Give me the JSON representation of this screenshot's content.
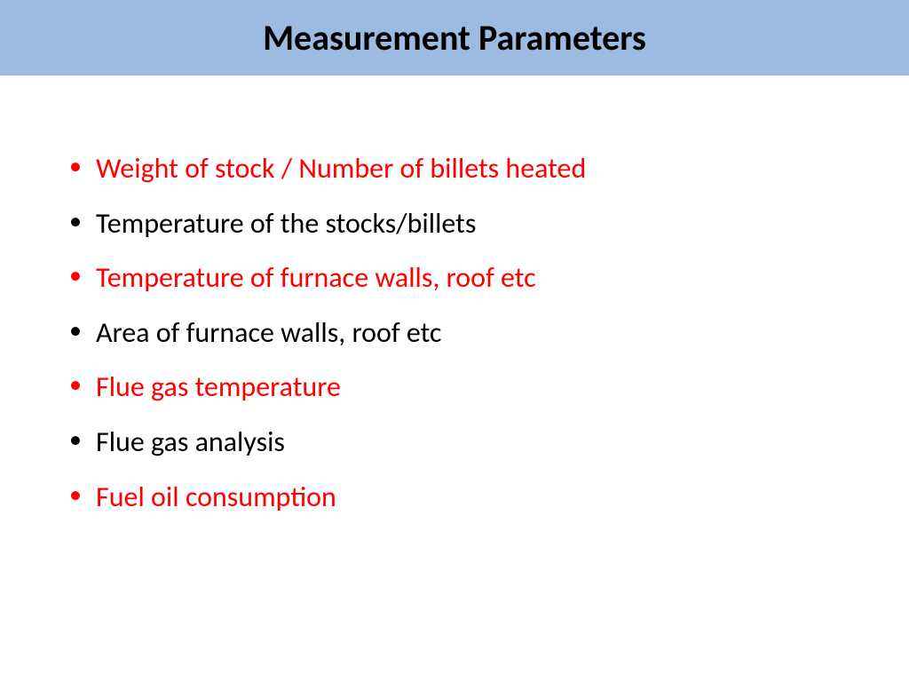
{
  "header": {
    "title": "Measurement Parameters",
    "background_color": "#9bbce0",
    "title_color": "#000000",
    "title_fontsize": 40
  },
  "body": {
    "background_color": "#ffffff",
    "item_fontsize": 32
  },
  "colors": {
    "highlight": "#ff0000",
    "normal": "#000000"
  },
  "items": [
    {
      "text": "Weight of stock / Number of billets heated",
      "color": "#ff0000"
    },
    {
      "text": "Temperature of the stocks/billets",
      "color": "#000000"
    },
    {
      "text": "Temperature of furnace walls, roof etc",
      "color": "#ff0000"
    },
    {
      "text": "Area of furnace walls, roof etc",
      "color": "#000000"
    },
    {
      "text": "Flue gas temperature",
      "color": "#ff0000"
    },
    {
      "text": "Flue gas analysis",
      "color": "#000000"
    },
    {
      "text": "Fuel oil consumption",
      "color": "#ff0000"
    }
  ]
}
